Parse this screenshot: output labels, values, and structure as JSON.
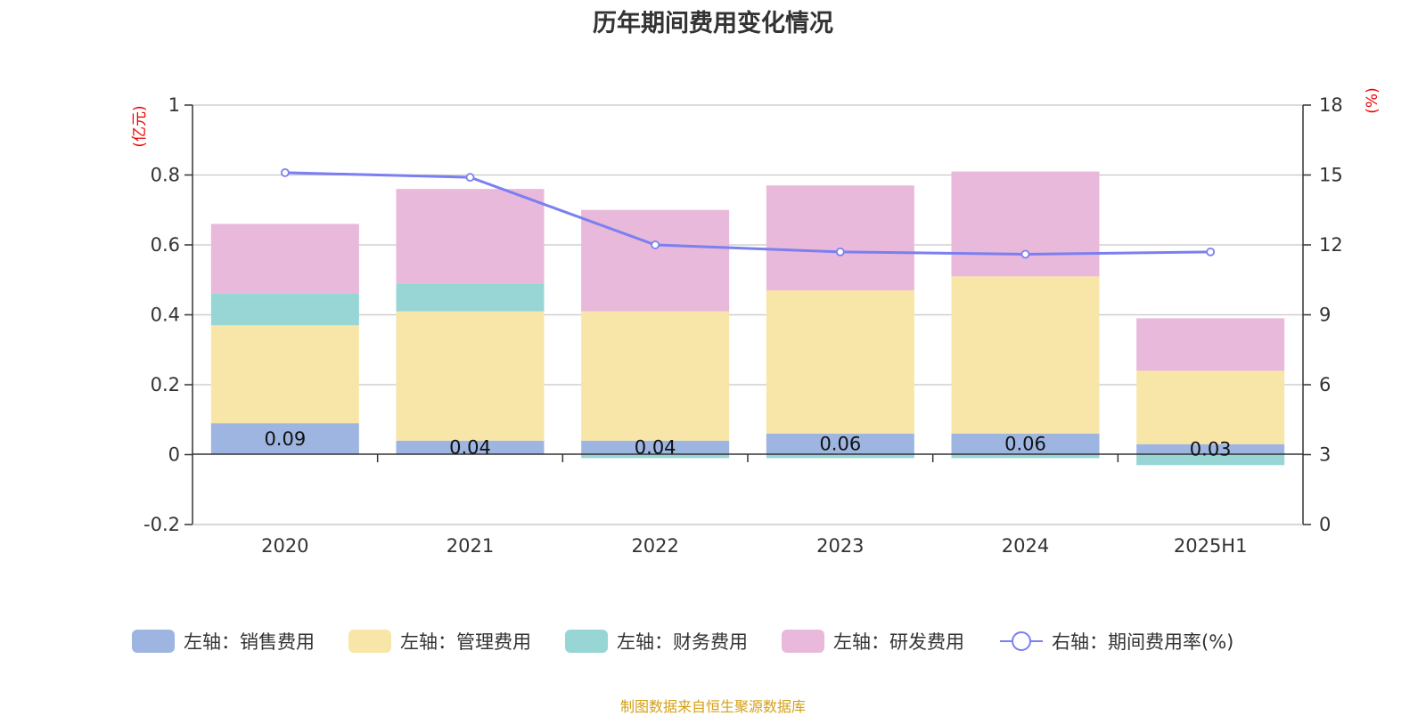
{
  "chart_data": {
    "type": "bar",
    "title": "历年期间费用变化情况",
    "categories": [
      "2020",
      "2021",
      "2022",
      "2023",
      "2024",
      "2025H1"
    ],
    "series": [
      {
        "name": "左轴：销售费用",
        "axis": "left",
        "type": "bar",
        "stack": "cost",
        "color": "#9db5e0",
        "values": [
          0.09,
          0.04,
          0.04,
          0.06,
          0.06,
          0.03
        ],
        "show_labels": true
      },
      {
        "name": "左轴：管理费用",
        "axis": "left",
        "type": "bar",
        "stack": "cost",
        "color": "#f8e6a8",
        "values": [
          0.28,
          0.37,
          0.37,
          0.41,
          0.45,
          0.21
        ]
      },
      {
        "name": "左轴：财务费用",
        "axis": "left",
        "type": "bar",
        "stack": "cost",
        "color": "#98d5d5",
        "values": [
          0.09,
          0.08,
          -0.01,
          -0.01,
          -0.01,
          -0.03
        ]
      },
      {
        "name": "左轴：研发费用",
        "axis": "left",
        "type": "bar",
        "stack": "cost",
        "color": "#e8b9da",
        "values": [
          0.2,
          0.27,
          0.29,
          0.3,
          0.3,
          0.15
        ]
      },
      {
        "name": "右轴：期间费用率(%)",
        "axis": "right",
        "type": "line",
        "color": "#7b7ff0",
        "values": [
          15.1,
          14.9,
          12.0,
          11.7,
          11.6,
          11.7
        ]
      }
    ],
    "left_axis": {
      "unit": "(亿元)",
      "min": -0.2,
      "max": 1,
      "ticks": [
        -0.2,
        0,
        0.2,
        0.4,
        0.6,
        0.8,
        1
      ]
    },
    "right_axis": {
      "unit": "(%)",
      "min": 0,
      "max": 18,
      "ticks": [
        0,
        3,
        6,
        9,
        12,
        15,
        18
      ]
    },
    "grid": true,
    "legend_position": "bottom",
    "axis_unit_color": "#ee0000"
  },
  "footer": {
    "source": "制图数据来自恒生聚源数据库"
  }
}
